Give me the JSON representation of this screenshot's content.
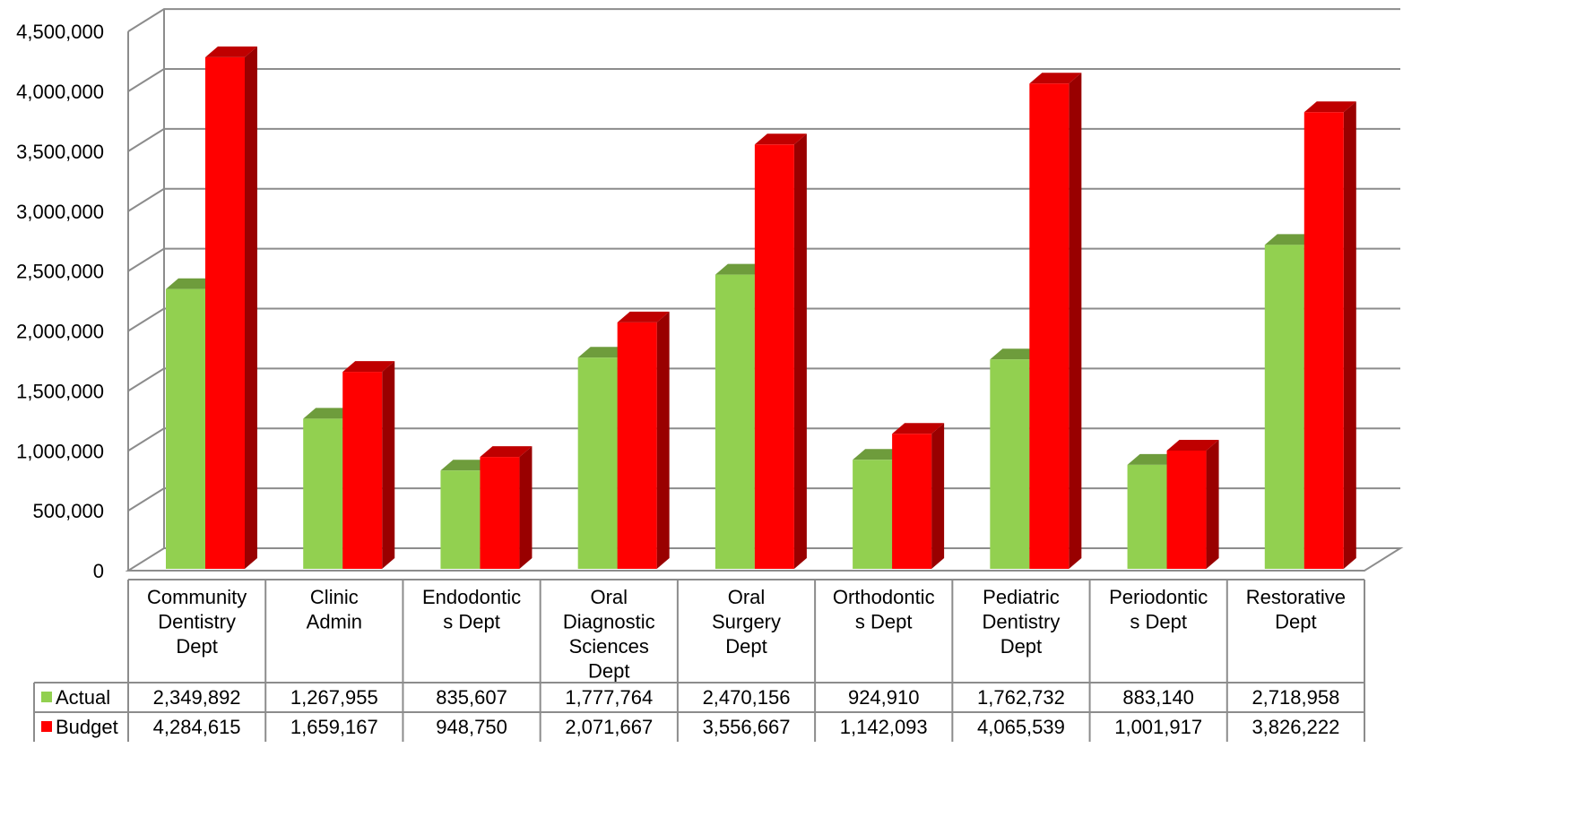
{
  "chart_data": {
    "type": "bar",
    "categories": [
      "Community Dentistry Dept",
      "Clinic Admin",
      "Endodontics Dept",
      "Oral Diagnostic Sciences Dept",
      "Oral Surgery Dept",
      "Orthodontics Dept",
      "Pediatric Dentistry Dept",
      "Periodontics Dept",
      "Restorative Dept"
    ],
    "category_label_lines": [
      [
        "Community",
        "Dentistry",
        "Dept"
      ],
      [
        "Clinic",
        "Admin"
      ],
      [
        "Endodontic",
        "s Dept"
      ],
      [
        "Oral",
        "Diagnostic",
        "Sciences",
        "Dept"
      ],
      [
        "Oral",
        "Surgery",
        "Dept"
      ],
      [
        "Orthodontic",
        "s Dept"
      ],
      [
        "Pediatric",
        "Dentistry",
        "Dept"
      ],
      [
        "Periodontic",
        "s Dept"
      ],
      [
        "Restorative",
        "Dept"
      ]
    ],
    "series": [
      {
        "name": "Actual",
        "color": "#92D050",
        "values": [
          2349892,
          1267955,
          835607,
          1777764,
          2470156,
          924910,
          1762732,
          883140,
          2718958
        ],
        "labels": [
          "2,349,892",
          "1,267,955",
          "835,607",
          "1,777,764",
          "2,470,156",
          "924,910",
          "1,762,732",
          "883,140",
          "2,718,958"
        ]
      },
      {
        "name": "Budget",
        "color": "#FF0000",
        "values": [
          4284615,
          1659167,
          948750,
          2071667,
          3556667,
          1142093,
          4065539,
          1001917,
          3826222
        ],
        "labels": [
          "4,284,615",
          "1,659,167",
          "948,750",
          "2,071,667",
          "3,556,667",
          "1,142,093",
          "4,065,539",
          "1,001,917",
          "3,826,222"
        ]
      }
    ],
    "y_ticks": [
      "0",
      "500,000",
      "1,000,000",
      "1,500,000",
      "2,000,000",
      "2,500,000",
      "3,000,000",
      "3,500,000",
      "4,000,000",
      "4,500,000"
    ],
    "ylim": [
      0,
      4500000
    ],
    "grid": true,
    "legend": "data-table",
    "style": "3d-clustered-column"
  }
}
